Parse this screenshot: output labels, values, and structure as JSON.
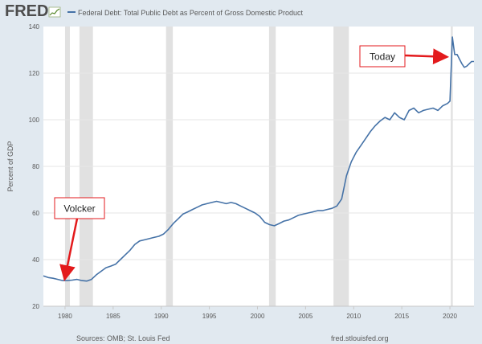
{
  "header": {
    "logo_text": "FRED",
    "legend_label": "Federal Debt: Total Public Debt as Percent of Gross Domestic Product"
  },
  "colors": {
    "background": "#e1e9f0",
    "plot_background": "#ffffff",
    "series": "#4572a7",
    "recession": "#e1e1e1",
    "annotation": "#e31a1c",
    "text": "#595959"
  },
  "footer": {
    "source": "Sources: OMB; St. Louis Fed",
    "url": "fred.stlouisfed.org"
  },
  "chart_data": {
    "type": "line",
    "ylabel": "Percent of GDP",
    "xlim": [
      1977.75,
      2022.5
    ],
    "ylim": [
      20,
      140
    ],
    "y_ticks": [
      20,
      40,
      60,
      80,
      100,
      120,
      140
    ],
    "x_ticks": [
      1980,
      1985,
      1990,
      1995,
      2000,
      2005,
      2010,
      2015,
      2020
    ],
    "grid": "horizontal",
    "recessions": [
      [
        1980.0,
        1980.5
      ],
      [
        1981.5,
        1982.9
      ],
      [
        1990.5,
        1991.2
      ],
      [
        2001.2,
        2001.9
      ],
      [
        2007.9,
        2009.5
      ],
      [
        2020.1,
        2020.3
      ]
    ],
    "series": [
      {
        "name": "Federal Debt: Total Public Debt as Percent of Gross Domestic Product",
        "x": [
          1977.75,
          1978.25,
          1978.75,
          1979.25,
          1979.75,
          1980.25,
          1980.75,
          1981.25,
          1981.75,
          1982.25,
          1982.75,
          1983.25,
          1983.75,
          1984.25,
          1984.75,
          1985.25,
          1985.75,
          1986.25,
          1986.75,
          1987.25,
          1987.75,
          1988.25,
          1988.75,
          1989.25,
          1989.75,
          1990.25,
          1990.75,
          1991.25,
          1991.75,
          1992.25,
          1992.75,
          1993.25,
          1993.75,
          1994.25,
          1994.75,
          1995.25,
          1995.75,
          1996.25,
          1996.75,
          1997.25,
          1997.75,
          1998.25,
          1998.75,
          1999.25,
          1999.75,
          2000.25,
          2000.75,
          2001.25,
          2001.75,
          2002.25,
          2002.75,
          2003.25,
          2003.75,
          2004.25,
          2004.75,
          2005.25,
          2005.75,
          2006.25,
          2006.75,
          2007.25,
          2007.75,
          2008.25,
          2008.75,
          2009.25,
          2009.75,
          2010.25,
          2010.75,
          2011.25,
          2011.75,
          2012.25,
          2012.75,
          2013.25,
          2013.75,
          2014.25,
          2014.75,
          2015.25,
          2015.75,
          2016.25,
          2016.75,
          2017.25,
          2017.75,
          2018.25,
          2018.75,
          2019.25,
          2019.75,
          2020.0,
          2020.25,
          2020.5,
          2020.75,
          2021.0,
          2021.25,
          2021.5,
          2021.75,
          2022.0,
          2022.25,
          2022.5
        ],
        "values": [
          33,
          32.3,
          32,
          31.5,
          31,
          31,
          31.2,
          31.5,
          31,
          30.8,
          31.5,
          33.5,
          35,
          36.5,
          37.2,
          38,
          40,
          42,
          44,
          46.5,
          48,
          48.5,
          49,
          49.5,
          50,
          51,
          53,
          55.5,
          57.5,
          59.5,
          60.5,
          61.5,
          62.5,
          63.5,
          64,
          64.5,
          65,
          64.5,
          64,
          64.5,
          64,
          63,
          62,
          61,
          60,
          58.5,
          56,
          55,
          54.5,
          55.5,
          56.5,
          57,
          58,
          59,
          59.5,
          60,
          60.5,
          61,
          61,
          61.5,
          62,
          63,
          66,
          76,
          82,
          86,
          89,
          92,
          95,
          97.5,
          99.5,
          101,
          100,
          103,
          101,
          100,
          104,
          105,
          103,
          104,
          104.5,
          105,
          104,
          106,
          107,
          108,
          135.5,
          128,
          128,
          126,
          124,
          122.5,
          123,
          124,
          125,
          125
        ]
      }
    ],
    "annotations": [
      {
        "text": "Volcker",
        "target": [
          1980.0,
          31
        ]
      },
      {
        "text": "Today",
        "target": [
          2020.0,
          127
        ]
      }
    ]
  }
}
